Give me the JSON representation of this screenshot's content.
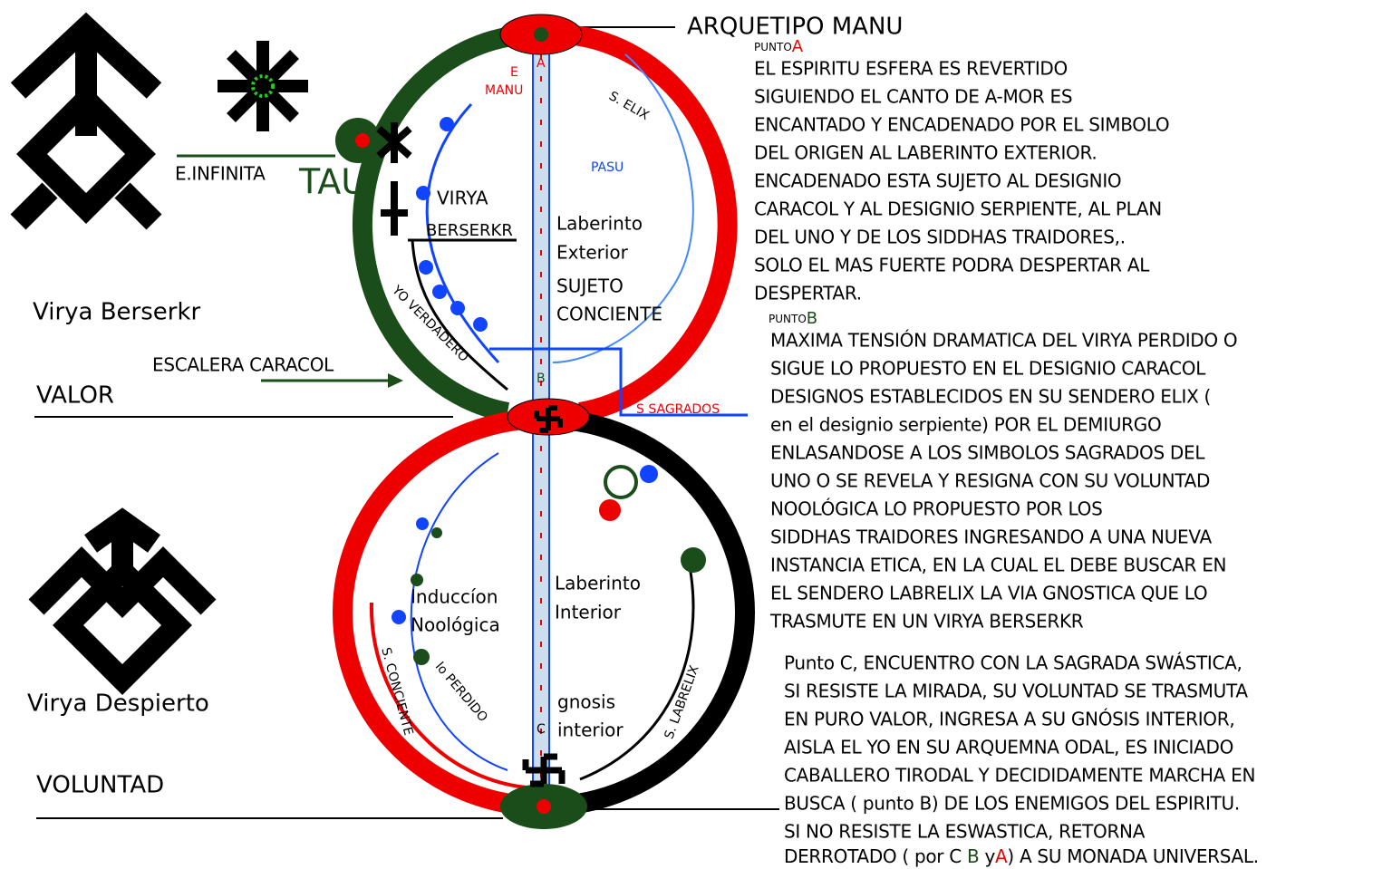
{
  "title": "ARQUETIPO MANU",
  "punto_a": {
    "label": "PUNTO",
    "letter": "A",
    "lines": [
      "EL ESPIRITU ESFERA ES REVERTIDO",
      "SIGUIENDO EL CANTO DE A-MOR ES",
      "ENCANTADO Y ENCADENADO POR EL SIMBOLO",
      "DEL ORIGEN AL LABERINTO EXTERIOR.",
      "ENCADENADO ESTA SUJETO AL DESIGNIO",
      "CARACOL Y AL DESIGNIO SERPIENTE, AL PLAN",
      "DEL UNO Y DE LOS SIDDHAS TRAIDORES,.",
      "SOLO EL MAS FUERTE PODRA DESPERTAR AL",
      "DESPERTAR."
    ]
  },
  "punto_b": {
    "label": "PUNTO",
    "letter": "B",
    "lines": [
      "MAXIMA TENSIÓN DRAMATICA DEL VIRYA PERDIDO O",
      "SIGUE LO PROPUESTO EN EL DESIGNIO CARACOL",
      "DESIGNOS ESTABLECIDOS EN SU SENDERO ELIX  (",
      "en el designio serpiente) POR EL DEMIURGO",
      "ENLASANDOSE A LOS SIMBOLOS SAGRADOS DEL",
      "UNO O SE REVELA Y RESIGNA CON SU VOLUNTAD",
      "NOOLÓGICA  LO PROPUESTO POR LOS",
      "SIDDHAS TRAIDORES INGRESANDO A UNA NUEVA",
      "INSTANCIA ETICA, EN LA CUAL EL DEBE BUSCAR EN",
      "EL SENDERO LABRELIX LA VIA GNOSTICA QUE LO",
      "TRASMUTE EN  UN VIRYA BERSERKR"
    ]
  },
  "punto_c": {
    "lines": [
      "Punto C, ENCUENTRO CON LA SAGRADA SWÁSTICA,",
      "SI RESISTE LA MIRADA, SU VOLUNTAD SE TRASMUTA",
      "EN PURO VALOR, INGRESA A SU GNÓSIS INTERIOR,",
      "AISLA EL YO EN SU ARQUEMNA ODAL, ES INICIADO",
      "CABALLERO TIRODAL Y DECIDIDAMENTE MARCHA EN",
      "BUSCA ( punto B) DE LOS ENEMIGOS DEL ESPIRITU.",
      "SI NO RESISTE LA ESWASTICA, RETORNA"
    ],
    "last_line": [
      "DERROTADO ( por C ",
      "B",
      " y",
      "A",
      ") A SU MONADA  UNIVERSAL."
    ]
  },
  "left": {
    "virya_berserkr": "Virya Berserkr",
    "valor": "VALOR",
    "virya_despierto": "Virya Despierto",
    "voluntad": "VOLUNTAD",
    "escalera": "ESCALERA CARACOL",
    "e_infinita": "E.INFINITA",
    "tau": "TAU"
  },
  "diagram": {
    "e": "E",
    "manu": "MANU",
    "a": "A",
    "b": "B",
    "c": "C",
    "s_elix": "S. ELIX",
    "pasu": "PASU",
    "virya": "VIRYA",
    "berserkr": "BERSERKR",
    "laberinto_ext": "Laberinto",
    "exterior": "Exterior",
    "sujeto": "SUJETO",
    "conciente": "CONCIENTE",
    "yo_verdadero": "YO VERDADERO",
    "s_sagrados": "S SAGRADOS",
    "laberinto_int": "Laberinto",
    "interior": "Interior",
    "induccion": "Induccíon",
    "noologica": "Noológica",
    "gnosis": "gnosis",
    "gnosis_interior": "interior",
    "s_labrelix": "S. LABRELIX",
    "s_conciente": "S. CONCIENTE",
    "yo_perdido": "lo PERDIDO"
  }
}
